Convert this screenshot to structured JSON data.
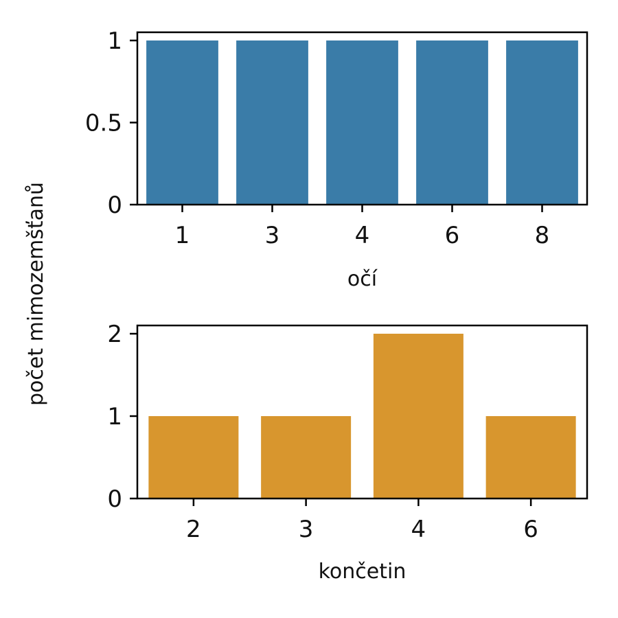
{
  "ylabel": "počet mimozemšťanů",
  "chart_data": [
    {
      "type": "bar",
      "xlabel": "očí",
      "categories": [
        "1",
        "3",
        "4",
        "6",
        "8"
      ],
      "values": [
        1,
        1,
        1,
        1,
        1
      ],
      "ylim": [
        0,
        1.05
      ],
      "yticks": [
        0,
        0.5,
        1
      ],
      "ytick_labels": [
        "0",
        "0.5",
        "1"
      ],
      "color": "#3a7ca8"
    },
    {
      "type": "bar",
      "xlabel": "končetin",
      "categories": [
        "2",
        "3",
        "4",
        "6"
      ],
      "values": [
        1,
        1,
        2,
        1
      ],
      "ylim": [
        0,
        2.1
      ],
      "yticks": [
        0,
        1,
        2
      ],
      "ytick_labels": [
        "0",
        "1",
        "2"
      ],
      "color": "#d8962e"
    }
  ]
}
